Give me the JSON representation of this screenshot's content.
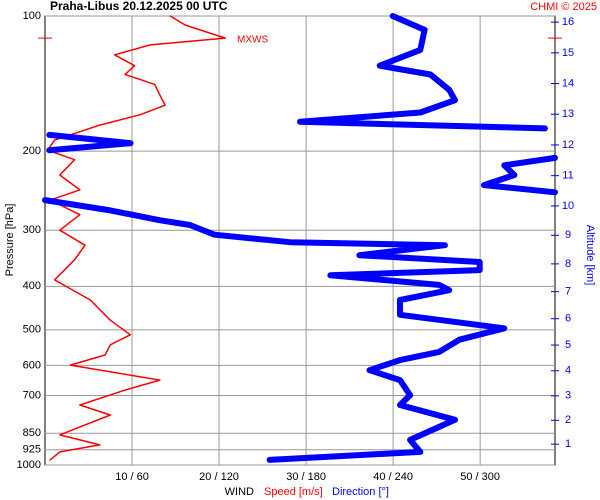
{
  "chart_data": {
    "type": "profile",
    "title": "Praha-Libus    20.12.2025 00 UTC",
    "credit": "CHMI © 2025",
    "xlabel": "WIND",
    "ylabel": "Pressure [hPa]",
    "y2label": "Altitude [km]",
    "xlim": [
      0,
      58.6
    ],
    "x2lim": [
      0,
      352
    ],
    "xticks": [
      {
        "value": 10,
        "label": "10 / 60"
      },
      {
        "value": 20,
        "label": "20 / 120"
      },
      {
        "value": 30,
        "label": "30 / 180"
      },
      {
        "value": 40,
        "label": "40 / 240"
      },
      {
        "value": 50,
        "label": "50 / 300"
      }
    ],
    "ylim": [
      1000,
      100
    ],
    "ylog": true,
    "yticks": [
      100,
      200,
      300,
      400,
      500,
      600,
      700,
      850,
      925,
      1000
    ],
    "y2lim": [
      0.11,
      16.2
    ],
    "y2ticks": [
      1,
      2,
      3,
      4,
      5,
      6,
      7,
      8,
      9,
      10,
      11,
      12,
      13,
      14,
      15,
      16
    ],
    "grid": true,
    "annotations": [
      {
        "text": "MXWS",
        "y": 112
      }
    ],
    "series": [
      {
        "name": "Speed [m/s]",
        "color": "#ff0000",
        "axis": "x",
        "y": [
          100,
          104.7,
          112,
          116,
          122,
          129,
          135,
          142,
          150,
          158,
          166,
          175,
          189,
          199,
          209,
          226,
          244,
          257,
          277,
          300,
          324,
          349,
          387,
          429,
          476,
          513,
          540,
          569,
          599,
          647,
          681,
          735,
          774,
          814,
          857,
          902,
          935,
          974
        ],
        "values": [
          14.4,
          16.1,
          20.7,
          12.1,
          8.0,
          10.3,
          9.2,
          12.6,
          13.2,
          13.8,
          10.9,
          6.3,
          1.1,
          0.3,
          3.4,
          1.7,
          4.0,
          0.6,
          4.0,
          1.7,
          4.6,
          3.4,
          1.1,
          5.2,
          7.5,
          9.8,
          7.5,
          6.9,
          2.9,
          13.2,
          9.2,
          4.0,
          7.5,
          4.6,
          1.7,
          6.3,
          1.7,
          0.6
        ]
      },
      {
        "name": "Direction [°]",
        "color": "#0000ff",
        "axis": "x2",
        "y": [
          100,
          107.4,
          119,
          129,
          135,
          146,
          154,
          164,
          172,
          178,
          null,
          184,
          192,
          199,
          null,
          207,
          215,
          226,
          238,
          247,
          null,
          257,
          271,
          285,
          292,
          307,
          319,
          324,
          341,
          353,
          368,
          378,
          397,
          408,
          429,
          463,
          496,
          526,
          560,
          584,
          615,
          647,
          699,
          735,
          793,
          879,
          935,
          974
        ],
        "values": [
          240,
          262,
          259,
          231,
          266,
          279,
          283,
          259,
          176,
          345,
          null,
          3,
          59,
          3,
          null,
          352,
          317,
          324,
          303,
          352,
          null,
          0,
          45,
          79,
          100,
          117,
          169,
          276,
          217,
          300,
          300,
          197,
          272,
          279,
          245,
          245,
          317,
          286,
          272,
          245,
          224,
          245,
          252,
          245,
          283,
          252,
          259,
          155
        ]
      }
    ]
  }
}
